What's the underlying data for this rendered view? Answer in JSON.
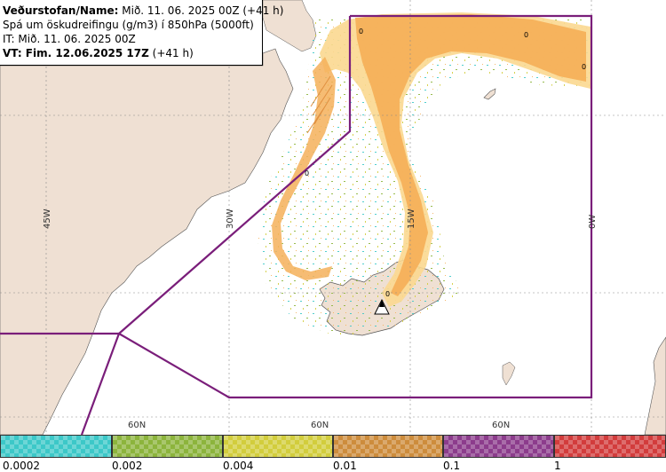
{
  "info": {
    "line1_label": "Veðurstofan/Name:",
    "line1_value": " Mið. 11. 06. 2025 00Z (+41 h)",
    "line2": "Spá um öskudreifingu (g/m3) í 850hPa (5000ft)",
    "line3": "IT: Mið. 11. 06. 2025 00Z",
    "line4_label": "VT: Fim. 12.06.2025 17Z",
    "line4_value": " (+41 h)"
  },
  "map_labels": {
    "lon_45w": "45W",
    "lon_30w": "30W",
    "lon_15w": "15W",
    "lon_0w": "0W",
    "lat_left": "60N",
    "lat_mid": "60N",
    "lat_right": "60N"
  },
  "contour_label": "0",
  "legend": {
    "ticks": [
      "0.0002",
      "0.002",
      "0.004",
      "0.01",
      "0.1",
      "1"
    ],
    "colors": [
      "#3cc8c8",
      "#8cb43c",
      "#d2cd3c",
      "#cd8c3c",
      "#8c3c8c",
      "#d23c3c"
    ]
  },
  "colors": {
    "land": "#efe0d3",
    "sea": "#ffffff",
    "boundary": "#7a1e7a",
    "ash_orange": "#f5b05a",
    "ash_light": "#fbd890"
  },
  "volcano_icon": "volcano-marker-icon"
}
